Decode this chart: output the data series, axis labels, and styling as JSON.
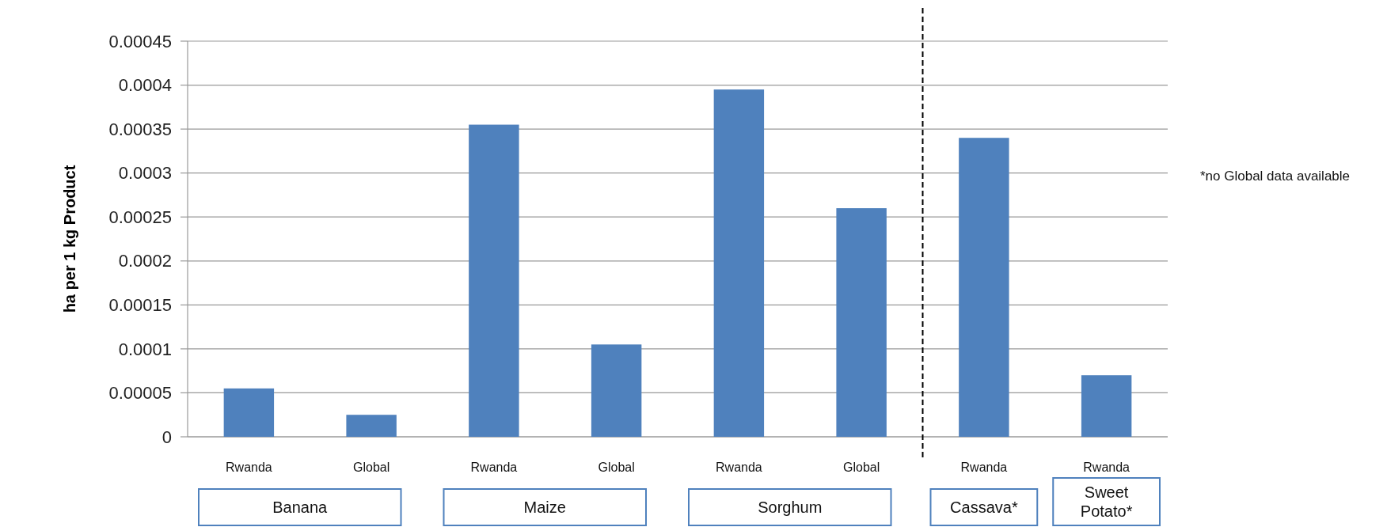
{
  "chart_data": {
    "type": "bar",
    "ylabel": "ha per 1 kg Product",
    "categories": [
      "Rwanda",
      "Global",
      "Rwanda",
      "Global",
      "Rwanda",
      "Global",
      "Rwanda",
      "Rwanda"
    ],
    "values": [
      5.5e-05,
      2.5e-05,
      0.000355,
      0.000105,
      0.000395,
      0.00026,
      0.00034,
      7e-05
    ],
    "color": "#4f81bd",
    "ylim": [
      0,
      0.00045
    ],
    "yticks": [
      0,
      {
        "value": 5e-05,
        "label": "0.00005"
      },
      0.0001,
      0.00015,
      0.0002,
      0.00025,
      0.0003,
      0.00035,
      0.0004,
      0.00045
    ],
    "grid": "y",
    "annotations": [
      "Banana",
      "Maize",
      "Sorghum",
      "Cassava*",
      "Sweet Potato*",
      "*no Global data available"
    ]
  }
}
